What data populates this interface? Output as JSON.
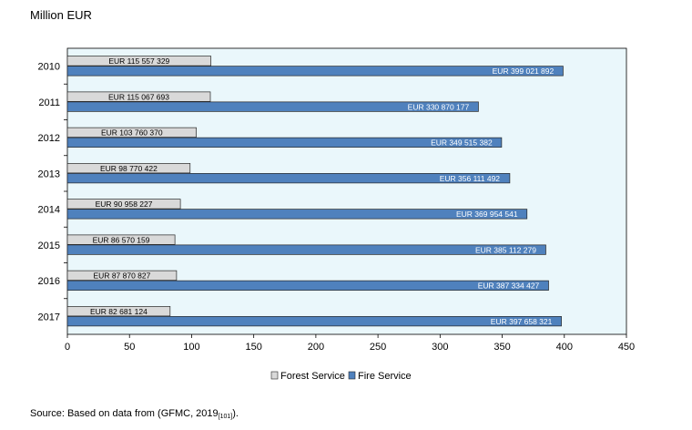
{
  "header": {
    "unit_label": "Million EUR"
  },
  "footer": {
    "source_prefix": "Source: Based on data from (GFMC, 2019",
    "source_ref": "[101]",
    "source_suffix": ")."
  },
  "chart_data": {
    "type": "bar",
    "orientation": "horizontal",
    "title": "",
    "xlabel": "",
    "ylabel": "",
    "unit": "Million EUR",
    "categories": [
      "2010",
      "2011",
      "2012",
      "2013",
      "2014",
      "2015",
      "2016",
      "2017"
    ],
    "series": [
      {
        "name": "Forest Service",
        "color": "#d9d9d9",
        "values": [
          115.557329,
          115.067693,
          103.76037,
          98.770422,
          90.958227,
          86.570159,
          87.870827,
          82.681124
        ],
        "labels": [
          "EUR 115 557 329",
          "EUR 115 067 693",
          "EUR 103 760 370",
          "EUR 98 770 422",
          "EUR 90 958 227",
          "EUR 86 570 159",
          "EUR 87 870 827",
          "EUR 82 681 124"
        ]
      },
      {
        "name": "Fire Service",
        "color": "#4f81bd",
        "values": [
          399.021892,
          330.870177,
          349.515382,
          356.111492,
          369.954541,
          385.112279,
          387.334427,
          397.658321
        ],
        "labels": [
          "EUR 399 021 892",
          "EUR 330 870 177",
          "EUR 349 515 382",
          "EUR 356 111 492",
          "EUR 369 954 541",
          "EUR 385 112 279",
          "EUR 387 334 427",
          "EUR 397 658 321"
        ]
      }
    ],
    "xlim": [
      0,
      450
    ],
    "xticks": [
      0,
      50,
      100,
      150,
      200,
      250,
      300,
      350,
      400,
      450
    ],
    "legend_position": "bottom-center",
    "plot_background": "#eaf7fb",
    "grid": false
  }
}
